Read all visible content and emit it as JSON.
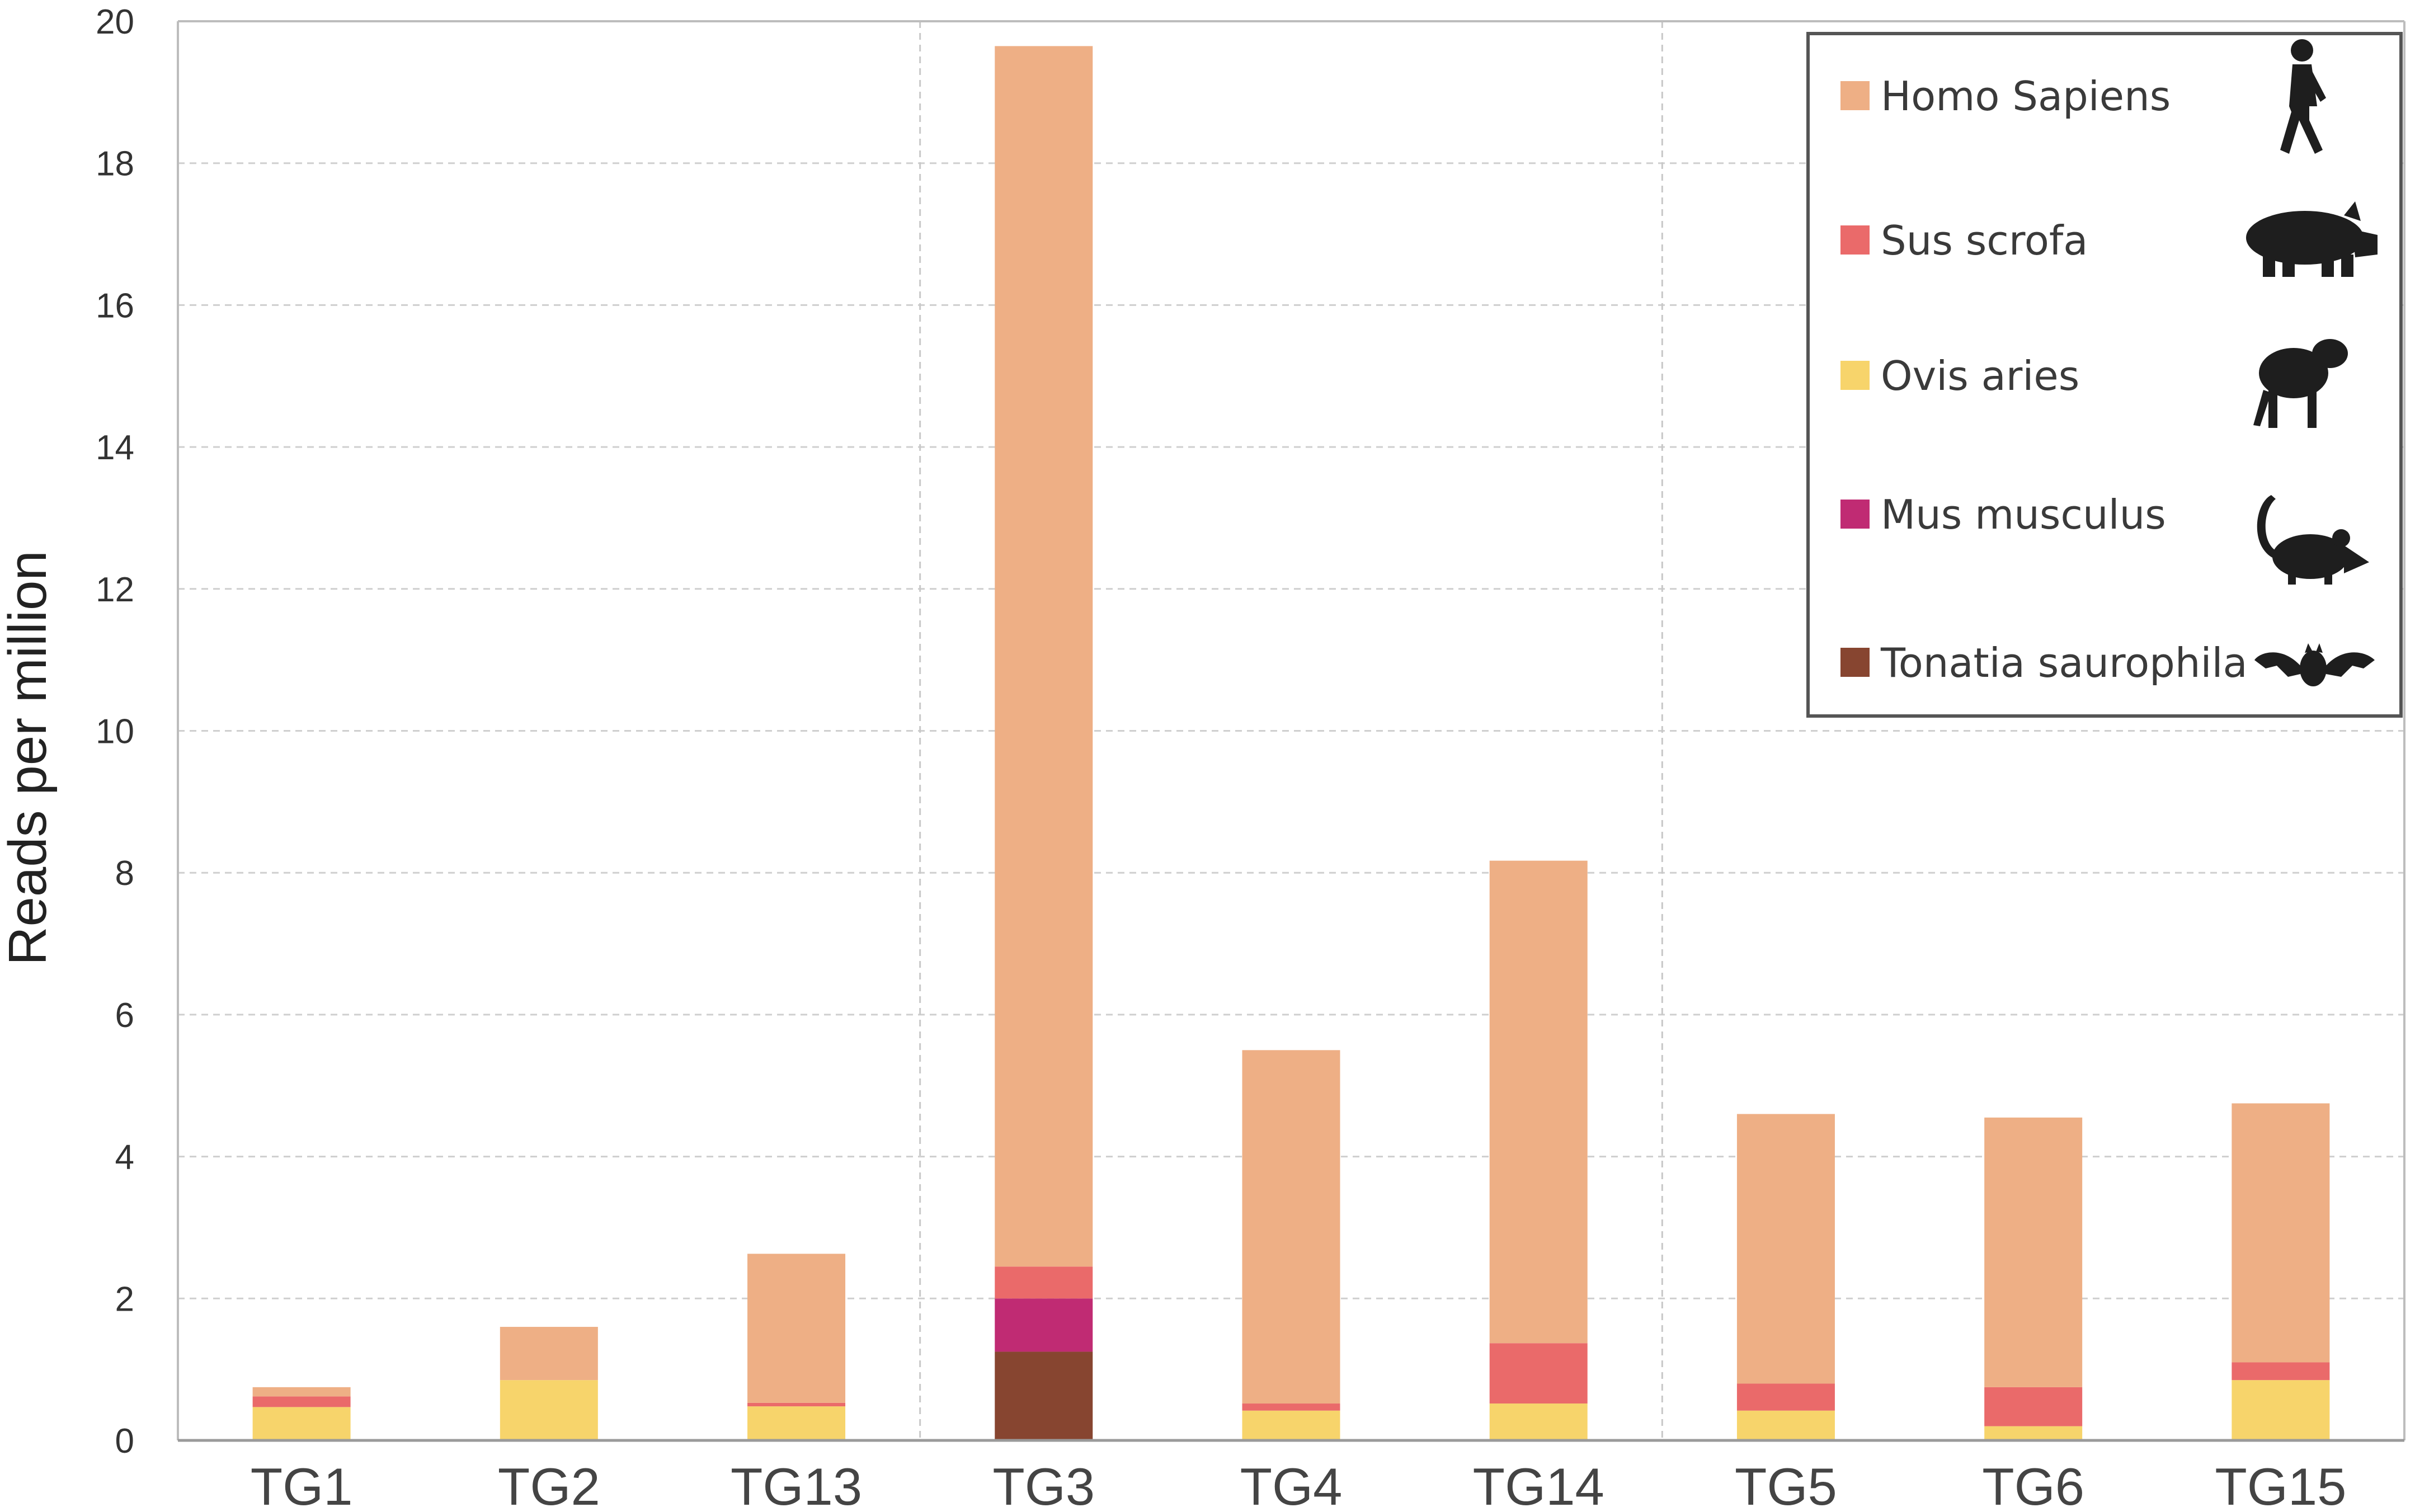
{
  "chart_data": {
    "type": "bar",
    "stacked": true,
    "title": "",
    "xlabel": "",
    "ylabel": "Reads per million",
    "ylim": [
      0,
      20
    ],
    "yticks": [
      0,
      2,
      4,
      6,
      8,
      10,
      12,
      14,
      16,
      18,
      20
    ],
    "grid": true,
    "legend_position": "top-right",
    "categories": [
      "TG1",
      "TG2",
      "TG13",
      "TG3",
      "TG4",
      "TG14",
      "TG5",
      "TG6",
      "TG15"
    ],
    "group_separators_after": [
      "TG13",
      "TG14"
    ],
    "series": [
      {
        "name": "Tonatia saurophila",
        "color": "#874530",
        "icon": "bat-icon",
        "values": [
          0,
          0,
          0,
          1.25,
          0,
          0,
          0,
          0,
          0
        ]
      },
      {
        "name": "Mus musculus",
        "color": "#c02b73",
        "icon": "mouse-icon",
        "values": [
          0,
          0,
          0,
          0.75,
          0,
          0,
          0,
          0,
          0
        ]
      },
      {
        "name": "Ovis aries",
        "color": "#f7d46b",
        "icon": "sheep-icon",
        "values": [
          0.47,
          0.85,
          0.48,
          0,
          0.42,
          0.52,
          0.42,
          0.2,
          0.85
        ]
      },
      {
        "name": "Sus scrofa",
        "color": "#ea6a6a",
        "icon": "pig-icon",
        "values": [
          0.15,
          0,
          0.05,
          0.45,
          0.1,
          0.85,
          0.38,
          0.55,
          0.25
        ]
      },
      {
        "name": "Homo Sapiens",
        "color": "#eeaf85",
        "icon": "human-icon",
        "values": [
          0.13,
          0.75,
          2.1,
          17.2,
          4.98,
          6.8,
          3.8,
          3.8,
          3.65
        ]
      }
    ],
    "legend_order": [
      "Homo Sapiens",
      "Sus scrofa",
      "Ovis aries",
      "Mus musculus",
      "Tonatia saurophila"
    ]
  }
}
